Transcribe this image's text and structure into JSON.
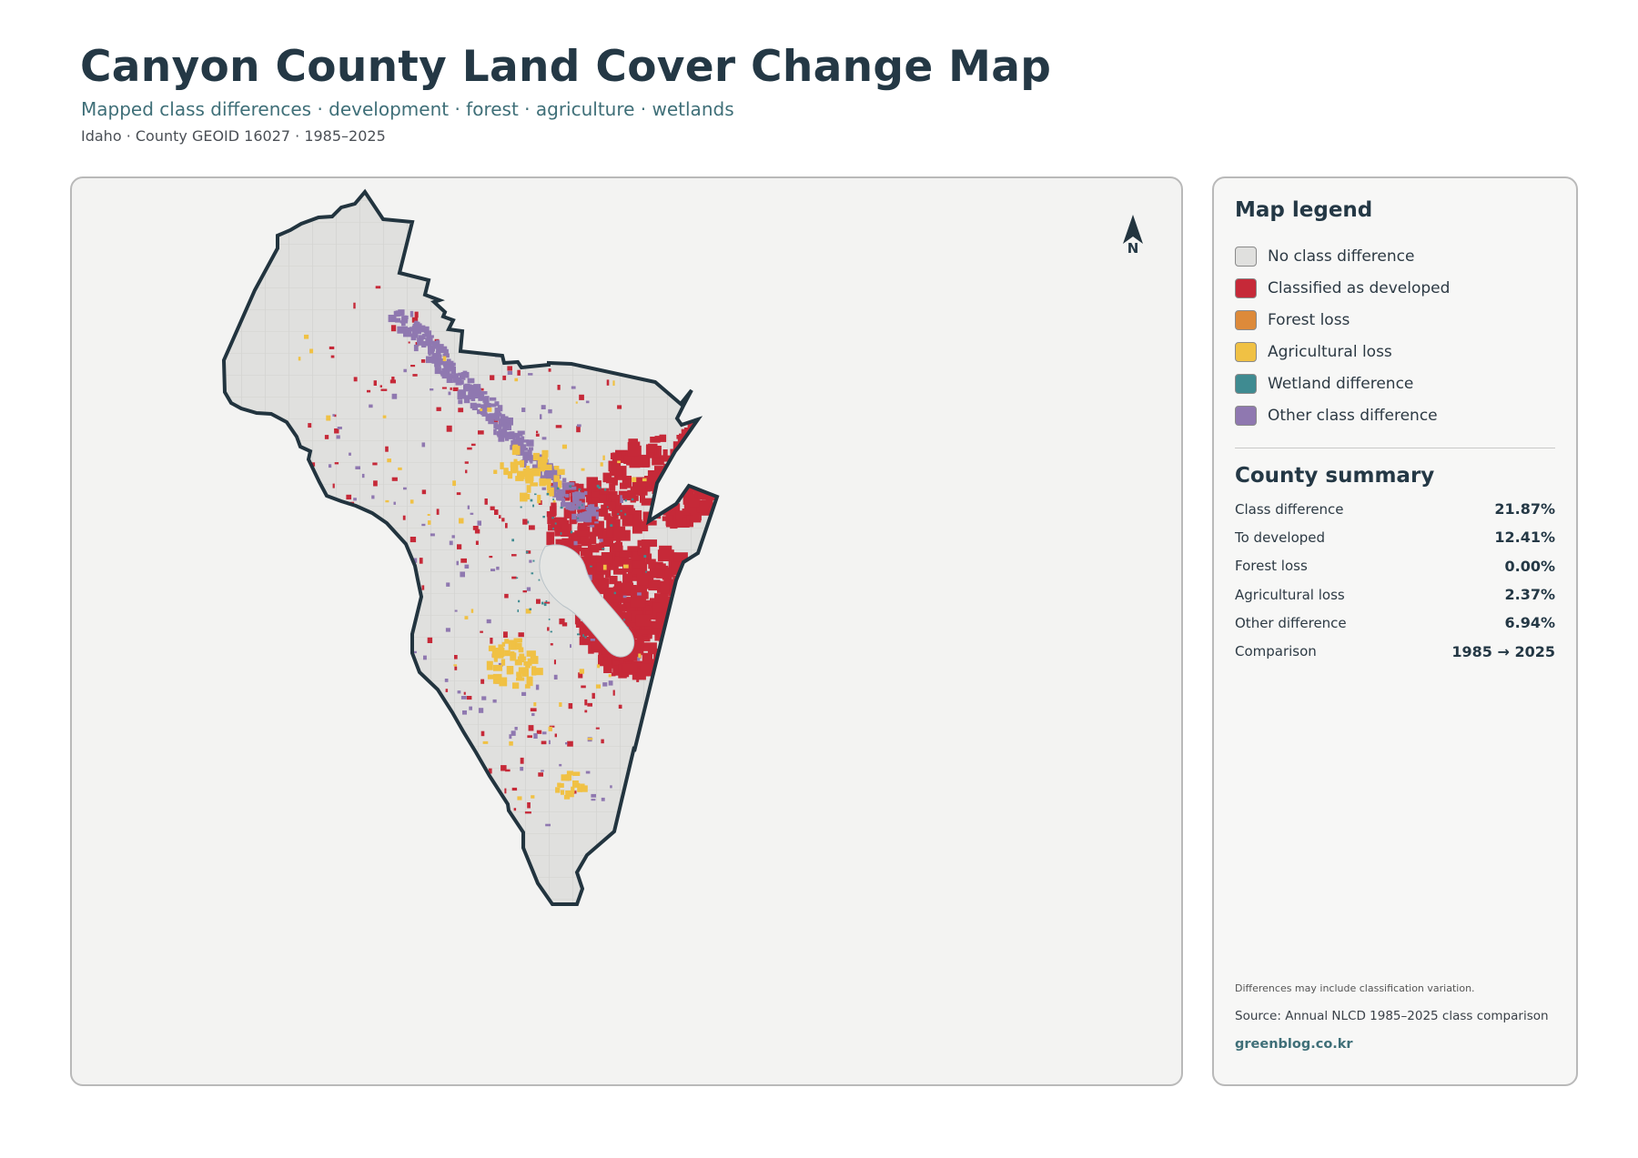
{
  "header": {
    "title": "Canyon County Land Cover Change Map",
    "subtitle": "Mapped class differences · development · forest · agriculture · wetlands",
    "meta": "Idaho · County GEOID 16027 · 1985–2025"
  },
  "map": {
    "north_label": "N",
    "colors": {
      "no_difference": "#e0e0de",
      "developed": "#c62938",
      "forest_loss": "#dd8a3a",
      "agricultural_loss": "#f0c144",
      "wetland": "#3f8b91",
      "other": "#8f78b0",
      "boundary": "#22343f"
    }
  },
  "legend": {
    "heading": "Map legend",
    "items": [
      {
        "label": "No class difference",
        "color": "#e0e0de"
      },
      {
        "label": "Classified as developed",
        "color": "#c62938"
      },
      {
        "label": "Forest loss",
        "color": "#dd8a3a"
      },
      {
        "label": "Agricultural loss",
        "color": "#f0c144"
      },
      {
        "label": "Wetland difference",
        "color": "#3f8b91"
      },
      {
        "label": "Other class difference",
        "color": "#8f78b0"
      }
    ]
  },
  "summary": {
    "heading": "County summary",
    "rows": [
      {
        "label": "Class difference",
        "value": "21.87%"
      },
      {
        "label": "To developed",
        "value": "12.41%"
      },
      {
        "label": "Forest loss",
        "value": "0.00%"
      },
      {
        "label": "Agricultural loss",
        "value": "2.37%"
      },
      {
        "label": "Other difference",
        "value": "6.94%"
      },
      {
        "label": "Comparison",
        "value": "1985 → 2025"
      }
    ]
  },
  "footer": {
    "note": "Differences may include classification variation.",
    "source": "Source: Annual NLCD 1985–2025 class comparison",
    "site": "greenblog.co.kr"
  }
}
